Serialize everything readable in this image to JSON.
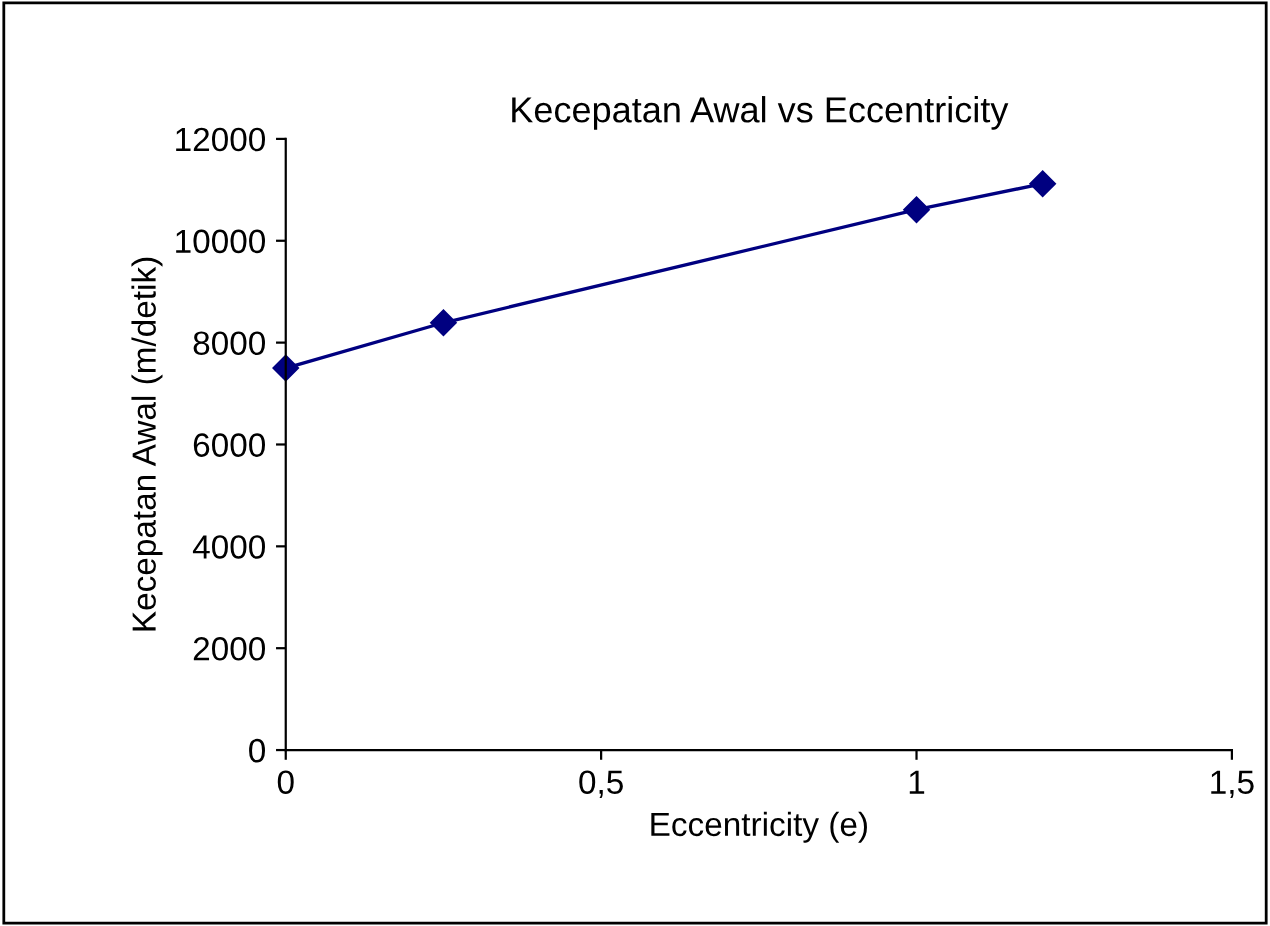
{
  "chart_data": {
    "type": "line",
    "title": "Kecepatan Awal vs Eccentricity",
    "xlabel": "Eccentricity (e)",
    "ylabel": "Kecepatan Awal (m/detik)",
    "x": [
      0,
      0.25,
      1,
      1.2
    ],
    "series": [
      {
        "color": "#000080",
        "values": [
          7500,
          8390,
          10610,
          11120
        ]
      }
    ],
    "xlim": [
      0,
      1.5
    ],
    "xticks": [
      0,
      {
        "value": 0.5,
        "label": "0,5"
      },
      1,
      {
        "value": 1.5,
        "label": "1,5"
      }
    ],
    "ylim": [
      0,
      12000
    ],
    "yticks": [
      0,
      2000,
      4000,
      6000,
      8000,
      10000,
      12000
    ],
    "marker": "diamond",
    "line_style": "solid",
    "grid": false,
    "legend": false
  }
}
